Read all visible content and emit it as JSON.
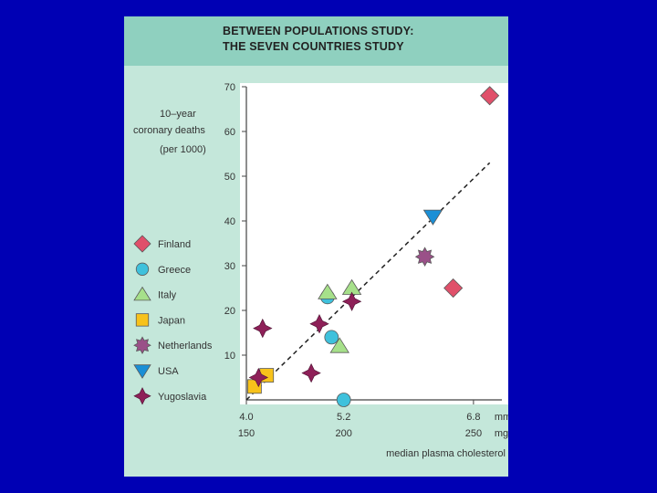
{
  "title_line1": "BETWEEN POPULATIONS STUDY:",
  "title_line2": "THE SEVEN COUNTRIES STUDY",
  "chart_data": {
    "type": "scatter",
    "title": "BETWEEN POPULATIONS STUDY: THE SEVEN COUNTRIES STUDY",
    "ylabel_lines": [
      "10–year",
      "coronary deaths",
      "(per 1000)"
    ],
    "xlabel": "median plasma cholesterol",
    "x_unit_mmol": "mmol/l",
    "x_unit_mg": "mg/dl",
    "xlim": [
      4.0,
      7.15
    ],
    "ylim": [
      0,
      70
    ],
    "yticks": [
      10,
      20,
      30,
      40,
      50,
      60,
      70
    ],
    "xticks": [
      {
        "mmol": 4.0,
        "mmol_label": "4.0",
        "mg_label": "150"
      },
      {
        "mmol": 5.2,
        "mmol_label": "5.2",
        "mg_label": "200"
      },
      {
        "mmol": 6.8,
        "mmol_label": "6.8",
        "mg_label": "250"
      }
    ],
    "trend_line": {
      "x": [
        4.0,
        7.0
      ],
      "y": [
        0,
        53
      ]
    },
    "series": [
      {
        "name": "Finland",
        "marker": "diamond",
        "color": "#e0506a",
        "points": [
          {
            "x": 7.0,
            "y": 68
          },
          {
            "x": 6.55,
            "y": 25
          }
        ]
      },
      {
        "name": "Greece",
        "marker": "circle",
        "color": "#3fc1dc",
        "points": [
          {
            "x": 5.0,
            "y": 23
          },
          {
            "x": 5.05,
            "y": 14
          },
          {
            "x": 5.2,
            "y": 0
          }
        ]
      },
      {
        "name": "Italy",
        "marker": "triangle",
        "color": "#a6e08a",
        "points": [
          {
            "x": 5.0,
            "y": 24
          },
          {
            "x": 5.3,
            "y": 25
          },
          {
            "x": 5.15,
            "y": 12
          }
        ]
      },
      {
        "name": "Japan",
        "marker": "square",
        "color": "#f7c21b",
        "points": [
          {
            "x": 4.1,
            "y": 3
          },
          {
            "x": 4.25,
            "y": 5.5
          }
        ]
      },
      {
        "name": "Netherlands",
        "marker": "star",
        "color": "#9a5088",
        "points": [
          {
            "x": 6.2,
            "y": 32
          }
        ]
      },
      {
        "name": "USA",
        "marker": "triangle-down",
        "color": "#1a8fd6",
        "points": [
          {
            "x": 6.3,
            "y": 41
          }
        ]
      },
      {
        "name": "Yugoslavia",
        "marker": "cross",
        "color": "#8e2058",
        "points": [
          {
            "x": 4.2,
            "y": 16
          },
          {
            "x": 4.9,
            "y": 17
          },
          {
            "x": 5.3,
            "y": 22
          },
          {
            "x": 4.8,
            "y": 6
          },
          {
            "x": 4.15,
            "y": 5
          }
        ]
      }
    ]
  }
}
